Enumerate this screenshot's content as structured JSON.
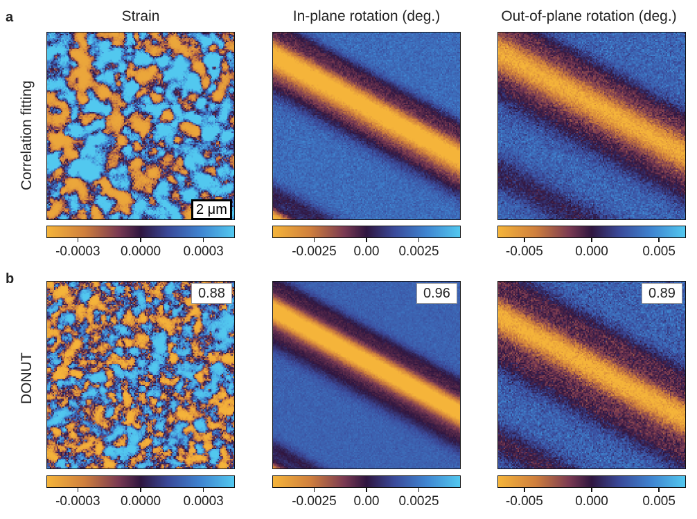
{
  "panels": {
    "a": "a",
    "b": "b"
  },
  "columns": [
    "Strain",
    "In-plane rotation (deg.)",
    "Out-of-plane rotation (deg.)"
  ],
  "rows": [
    "Correlation fitting",
    "DONUT"
  ],
  "scale_bar": "2 μm",
  "colors": {
    "low": "#f5b43a",
    "mid": "#2f1640",
    "high": "#52c8ef"
  },
  "chart_data": [
    {
      "type": "heatmap",
      "row": "Correlation fitting",
      "column": "Strain",
      "pattern": "random",
      "colorbar_ticks": [
        "-0.0003",
        "0.0000",
        "0.0003"
      ],
      "colorbar_range": [
        -0.00045,
        0.00045
      ]
    },
    {
      "type": "heatmap",
      "row": "Correlation fitting",
      "column": "In-plane rotation (deg.)",
      "pattern": "diagonal band",
      "colorbar_ticks": [
        "-0.0025",
        "0.00",
        "0.0025"
      ],
      "colorbar_range": [
        -0.0045,
        0.0045
      ]
    },
    {
      "type": "heatmap",
      "row": "Correlation fitting",
      "column": "Out-of-plane rotation (deg.)",
      "pattern": "diagonal band",
      "colorbar_ticks": [
        "-0.005",
        "0.000",
        "0.005"
      ],
      "colorbar_range": [
        -0.007,
        0.007
      ]
    },
    {
      "type": "heatmap",
      "row": "DONUT",
      "column": "Strain",
      "pattern": "random",
      "correlation": "0.88",
      "colorbar_ticks": [
        "-0.0003",
        "0.0000",
        "0.0003"
      ],
      "colorbar_range": [
        -0.00045,
        0.00045
      ]
    },
    {
      "type": "heatmap",
      "row": "DONUT",
      "column": "In-plane rotation (deg.)",
      "pattern": "diagonal band",
      "correlation": "0.96",
      "colorbar_ticks": [
        "-0.0025",
        "0.00",
        "0.0025"
      ],
      "colorbar_range": [
        -0.0045,
        0.0045
      ]
    },
    {
      "type": "heatmap",
      "row": "DONUT",
      "column": "Out-of-plane rotation (deg.)",
      "pattern": "diagonal band",
      "correlation": "0.89",
      "colorbar_ticks": [
        "-0.005",
        "0.000",
        "0.005"
      ],
      "colorbar_range": [
        -0.007,
        0.007
      ]
    }
  ]
}
